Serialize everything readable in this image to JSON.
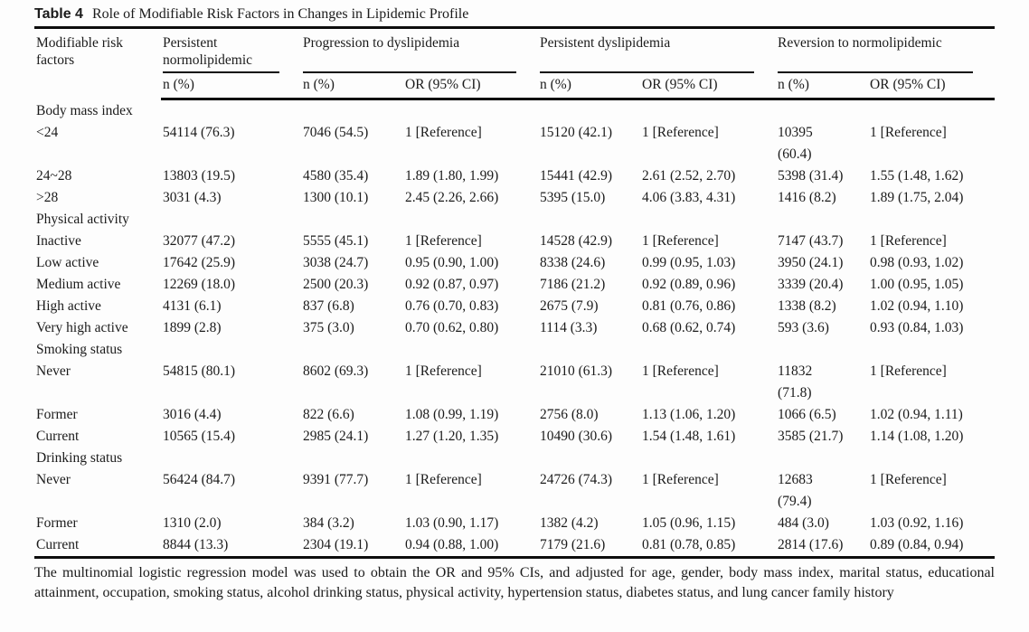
{
  "title": {
    "label": "Table 4",
    "text": "Role of Modifiable Risk Factors in Changes in Lipidemic Profile"
  },
  "table": {
    "stub_header": "Modifiable risk factors",
    "groups": [
      {
        "label": "Persistent normolipidemic",
        "subheaders": [
          "n (%)"
        ]
      },
      {
        "label": "Progression to dyslipidemia",
        "subheaders": [
          "n (%)",
          "OR (95% CI)"
        ]
      },
      {
        "label": "Persistent dyslipidemia",
        "subheaders": [
          "n (%)",
          "OR (95% CI)"
        ]
      },
      {
        "label": "Reversion to normolipidemic",
        "subheaders": [
          "n (%)",
          "OR (95% CI)"
        ]
      }
    ],
    "sections": [
      {
        "label": "Body mass index",
        "rows": [
          {
            "label": "<24",
            "cells": [
              "54114 (76.3)",
              "7046 (54.5)",
              "1 [Reference]",
              "15120 (42.1)",
              "1 [Reference]",
              "10395\n(60.4)",
              "1 [Reference]"
            ]
          },
          {
            "label": "24~28",
            "cells": [
              "13803 (19.5)",
              "4580 (35.4)",
              "1.89 (1.80, 1.99)",
              "15441 (42.9)",
              "2.61 (2.52, 2.70)",
              "5398 (31.4)",
              "1.55 (1.48, 1.62)"
            ]
          },
          {
            "label": ">28",
            "cells": [
              "3031 (4.3)",
              "1300 (10.1)",
              "2.45 (2.26, 2.66)",
              "5395 (15.0)",
              "4.06 (3.83, 4.31)",
              "1416 (8.2)",
              "1.89 (1.75, 2.04)"
            ]
          }
        ]
      },
      {
        "label": "Physical activity",
        "rows": [
          {
            "label": "Inactive",
            "cells": [
              "32077 (47.2)",
              "5555 (45.1)",
              "1 [Reference]",
              "14528 (42.9)",
              "1 [Reference]",
              "7147 (43.7)",
              "1 [Reference]"
            ]
          },
          {
            "label": "Low active",
            "cells": [
              "17642 (25.9)",
              "3038 (24.7)",
              "0.95 (0.90, 1.00)",
              "8338 (24.6)",
              "0.99 (0.95, 1.03)",
              "3950 (24.1)",
              "0.98 (0.93, 1.02)"
            ]
          },
          {
            "label": "Medium active",
            "cells": [
              "12269 (18.0)",
              "2500 (20.3)",
              "0.92 (0.87, 0.97)",
              "7186 (21.2)",
              "0.92 (0.89, 0.96)",
              "3339 (20.4)",
              "1.00 (0.95, 1.05)"
            ]
          },
          {
            "label": "High active",
            "cells": [
              "4131 (6.1)",
              "837 (6.8)",
              "0.76 (0.70, 0.83)",
              "2675 (7.9)",
              "0.81 (0.76, 0.86)",
              "1338 (8.2)",
              "1.02 (0.94, 1.10)"
            ]
          },
          {
            "label": "Very high active",
            "cells": [
              "1899 (2.8)",
              "375 (3.0)",
              "0.70 (0.62, 0.80)",
              "1114 (3.3)",
              "0.68 (0.62, 0.74)",
              "593 (3.6)",
              "0.93 (0.84, 1.03)"
            ]
          }
        ]
      },
      {
        "label": "Smoking status",
        "rows": [
          {
            "label": "Never",
            "cells": [
              "54815 (80.1)",
              "8602 (69.3)",
              "1 [Reference]",
              "21010 (61.3)",
              "1 [Reference]",
              "11832\n(71.8)",
              "1 [Reference]"
            ]
          },
          {
            "label": "Former",
            "cells": [
              "3016 (4.4)",
              "822 (6.6)",
              "1.08 (0.99, 1.19)",
              "2756 (8.0)",
              "1.13 (1.06, 1.20)",
              "1066 (6.5)",
              "1.02 (0.94, 1.11)"
            ]
          },
          {
            "label": "Current",
            "cells": [
              "10565 (15.4)",
              "2985 (24.1)",
              "1.27 (1.20, 1.35)",
              "10490 (30.6)",
              "1.54 (1.48, 1.61)",
              "3585 (21.7)",
              "1.14 (1.08, 1.20)"
            ]
          }
        ]
      },
      {
        "label": "Drinking status",
        "rows": [
          {
            "label": "Never",
            "cells": [
              "56424 (84.7)",
              "9391 (77.7)",
              "1 [Reference]",
              "24726 (74.3)",
              "1 [Reference]",
              "12683\n(79.4)",
              "1 [Reference]"
            ]
          },
          {
            "label": "Former",
            "cells": [
              "1310 (2.0)",
              "384 (3.2)",
              "1.03 (0.90, 1.17)",
              "1382 (4.2)",
              "1.05 (0.96, 1.15)",
              "484 (3.0)",
              "1.03 (0.92, 1.16)"
            ]
          },
          {
            "label": "Current",
            "cells": [
              "8844 (13.3)",
              "2304 (19.1)",
              "0.94 (0.88, 1.00)",
              "7179 (21.6)",
              "0.81 (0.78, 0.85)",
              "2814 (17.6)",
              "0.89 (0.84, 0.94)"
            ]
          }
        ]
      }
    ]
  },
  "footnote": "The multinomial logistic regression model was used to obtain the OR and 95% CIs, and adjusted for age, gender, body mass index, marital status, educational attainment, occupation, smoking status, alcohol drinking status, physical activity, hypertension status, diabetes status, and lung cancer family history"
}
